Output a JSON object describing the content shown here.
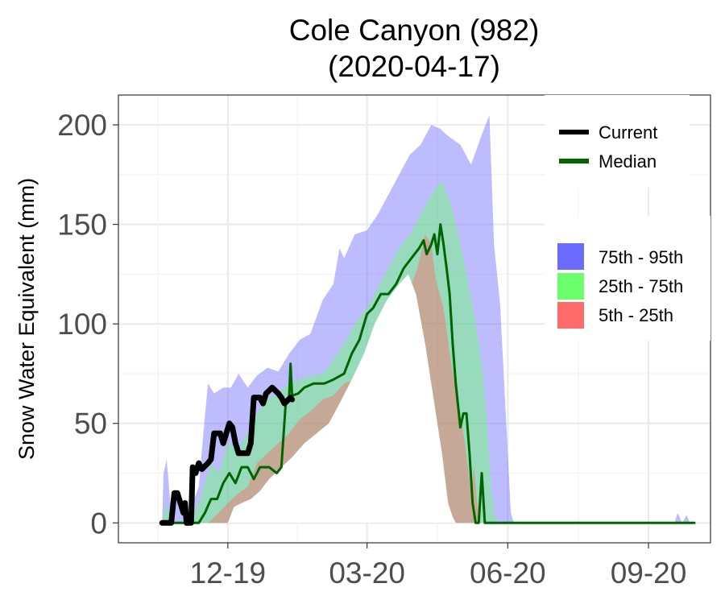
{
  "chart_data": {
    "type": "area",
    "title": [
      "Cole Canyon (982)",
      "(2020-04-17)"
    ],
    "xlabel": "",
    "ylabel": "Snow Water Equivalent (mm)",
    "ylim": [
      -10,
      215
    ],
    "xlim": [
      "2019-10-01",
      "2020-10-01"
    ],
    "x_ticks": [
      {
        "date": "2019-12-01",
        "label": "12-19"
      },
      {
        "date": "2020-03-01",
        "label": "03-20"
      },
      {
        "date": "2020-06-01",
        "label": "06-20"
      },
      {
        "date": "2020-09-01",
        "label": "09-20"
      }
    ],
    "y_ticks": [
      0,
      50,
      100,
      150,
      200
    ],
    "grid": true,
    "legend_placement": "top-right",
    "legend_lines": [
      {
        "name": "Current",
        "color": "#000000"
      },
      {
        "name": "Median",
        "color": "#006400"
      }
    ],
    "legend_bands": [
      {
        "name": "75th - 95th",
        "color": "#6b6bff"
      },
      {
        "name": "25th - 75th",
        "color": "#6bff6b"
      },
      {
        "name": "5th - 25th",
        "color": "#ff6b6b"
      }
    ],
    "bands": {
      "p95": [
        [
          "2019-10-19",
          0
        ],
        [
          "2019-10-20",
          25
        ],
        [
          "2019-10-22",
          32
        ],
        [
          "2019-10-25",
          5
        ],
        [
          "2019-10-28",
          12
        ],
        [
          "2019-11-01",
          10
        ],
        [
          "2019-11-04",
          3
        ],
        [
          "2019-11-08",
          10
        ],
        [
          "2019-11-12",
          18
        ],
        [
          "2019-11-15",
          45
        ],
        [
          "2019-11-18",
          70
        ],
        [
          "2019-11-22",
          65
        ],
        [
          "2019-11-28",
          68
        ],
        [
          "2019-12-03",
          68
        ],
        [
          "2019-12-08",
          75
        ],
        [
          "2019-12-14",
          68
        ],
        [
          "2019-12-20",
          74
        ],
        [
          "2019-12-27",
          78
        ],
        [
          "2020-01-03",
          76
        ],
        [
          "2020-01-10",
          85
        ],
        [
          "2020-01-17",
          92
        ],
        [
          "2020-01-24",
          95
        ],
        [
          "2020-02-01",
          112
        ],
        [
          "2020-02-08",
          120
        ],
        [
          "2020-02-12",
          138
        ],
        [
          "2020-02-15",
          133
        ],
        [
          "2020-02-22",
          145
        ],
        [
          "2020-03-01",
          147
        ],
        [
          "2020-03-08",
          155
        ],
        [
          "2020-03-15",
          165
        ],
        [
          "2020-03-22",
          175
        ],
        [
          "2020-03-29",
          185
        ],
        [
          "2020-04-05",
          190
        ],
        [
          "2020-04-12",
          200
        ],
        [
          "2020-04-18",
          198
        ],
        [
          "2020-04-22",
          195
        ],
        [
          "2020-05-01",
          190
        ],
        [
          "2020-05-08",
          180
        ],
        [
          "2020-05-15",
          195
        ],
        [
          "2020-05-20",
          205
        ],
        [
          "2020-05-23",
          140
        ],
        [
          "2020-05-27",
          110
        ],
        [
          "2020-05-31",
          50
        ],
        [
          "2020-06-03",
          5
        ],
        [
          "2020-06-05",
          0
        ],
        [
          "2020-09-18",
          0
        ],
        [
          "2020-09-20",
          5
        ],
        [
          "2020-09-23",
          0
        ],
        [
          "2020-09-26",
          4
        ],
        [
          "2020-09-28",
          0
        ]
      ],
      "p75": [
        [
          "2019-10-19",
          0
        ],
        [
          "2019-10-22",
          10
        ],
        [
          "2019-10-25",
          0
        ],
        [
          "2019-11-04",
          0
        ],
        [
          "2019-11-08",
          5
        ],
        [
          "2019-11-12",
          10
        ],
        [
          "2019-11-16",
          20
        ],
        [
          "2019-11-20",
          30
        ],
        [
          "2019-11-25",
          25
        ],
        [
          "2019-12-01",
          40
        ],
        [
          "2019-12-08",
          38
        ],
        [
          "2019-12-14",
          45
        ],
        [
          "2019-12-20",
          55
        ],
        [
          "2019-12-27",
          62
        ],
        [
          "2020-01-03",
          66
        ],
        [
          "2020-01-10",
          70
        ],
        [
          "2020-01-17",
          72
        ],
        [
          "2020-01-24",
          74
        ],
        [
          "2020-02-01",
          75
        ],
        [
          "2020-02-08",
          82
        ],
        [
          "2020-02-15",
          90
        ],
        [
          "2020-02-22",
          100
        ],
        [
          "2020-03-01",
          108
        ],
        [
          "2020-03-08",
          118
        ],
        [
          "2020-03-15",
          128
        ],
        [
          "2020-03-22",
          138
        ],
        [
          "2020-03-29",
          145
        ],
        [
          "2020-04-05",
          155
        ],
        [
          "2020-04-12",
          165
        ],
        [
          "2020-04-19",
          172
        ],
        [
          "2020-04-25",
          160
        ],
        [
          "2020-05-01",
          140
        ],
        [
          "2020-05-05",
          125
        ],
        [
          "2020-05-10",
          105
        ],
        [
          "2020-05-15",
          80
        ],
        [
          "2020-05-18",
          55
        ],
        [
          "2020-05-21",
          20
        ],
        [
          "2020-05-23",
          5
        ],
        [
          "2020-05-25",
          0
        ]
      ],
      "p25": [
        [
          "2019-10-19",
          0
        ],
        [
          "2019-11-18",
          0
        ],
        [
          "2019-11-25",
          5
        ],
        [
          "2019-12-01",
          10
        ],
        [
          "2019-12-08",
          15
        ],
        [
          "2019-12-14",
          18
        ],
        [
          "2019-12-20",
          30
        ],
        [
          "2019-12-27",
          35
        ],
        [
          "2020-01-03",
          40
        ],
        [
          "2020-01-10",
          45
        ],
        [
          "2020-01-17",
          52
        ],
        [
          "2020-01-24",
          56
        ],
        [
          "2020-02-01",
          62
        ],
        [
          "2020-02-08",
          64
        ],
        [
          "2020-02-15",
          70
        ],
        [
          "2020-02-22",
          72
        ],
        [
          "2020-03-01",
          76
        ],
        [
          "2020-03-08",
          85
        ],
        [
          "2020-03-15",
          95
        ],
        [
          "2020-03-22",
          112
        ],
        [
          "2020-03-29",
          118
        ],
        [
          "2020-04-03",
          128
        ],
        [
          "2020-04-08",
          145
        ],
        [
          "2020-04-12",
          140
        ],
        [
          "2020-04-15",
          122
        ],
        [
          "2020-04-20",
          108
        ],
        [
          "2020-04-25",
          80
        ],
        [
          "2020-04-30",
          60
        ],
        [
          "2020-05-04",
          40
        ],
        [
          "2020-05-08",
          15
        ],
        [
          "2020-05-10",
          28
        ],
        [
          "2020-05-12",
          10
        ],
        [
          "2020-05-14",
          0
        ]
      ],
      "p05": [
        [
          "2019-10-19",
          0
        ],
        [
          "2019-12-01",
          0
        ],
        [
          "2019-12-05",
          8
        ],
        [
          "2019-12-10",
          10
        ],
        [
          "2019-12-16",
          12
        ],
        [
          "2019-12-22",
          16
        ],
        [
          "2019-12-28",
          22
        ],
        [
          "2020-01-05",
          28
        ],
        [
          "2020-01-12",
          33
        ],
        [
          "2020-01-20",
          40
        ],
        [
          "2020-01-28",
          45
        ],
        [
          "2020-02-05",
          50
        ],
        [
          "2020-02-12",
          60
        ],
        [
          "2020-02-20",
          72
        ],
        [
          "2020-02-28",
          85
        ],
        [
          "2020-03-06",
          100
        ],
        [
          "2020-03-14",
          112
        ],
        [
          "2020-03-22",
          120
        ],
        [
          "2020-03-28",
          125
        ],
        [
          "2020-04-02",
          115
        ],
        [
          "2020-04-08",
          90
        ],
        [
          "2020-04-14",
          60
        ],
        [
          "2020-04-19",
          35
        ],
        [
          "2020-04-23",
          10
        ],
        [
          "2020-04-26",
          3
        ],
        [
          "2020-04-28",
          0
        ]
      ]
    },
    "series": [
      {
        "name": "Median",
        "color": "#006400",
        "points": [
          [
            "2019-10-19",
            0
          ],
          [
            "2019-11-12",
            0
          ],
          [
            "2019-11-16",
            5
          ],
          [
            "2019-11-20",
            12
          ],
          [
            "2019-11-24",
            12
          ],
          [
            "2019-11-28",
            20
          ],
          [
            "2019-12-02",
            25
          ],
          [
            "2019-12-06",
            20
          ],
          [
            "2019-12-10",
            28
          ],
          [
            "2019-12-14",
            28
          ],
          [
            "2019-12-18",
            22
          ],
          [
            "2019-12-22",
            28
          ],
          [
            "2019-12-28",
            28
          ],
          [
            "2020-01-02",
            25
          ],
          [
            "2020-01-05",
            28
          ],
          [
            "2020-01-08",
            62
          ],
          [
            "2020-01-10",
            62
          ],
          [
            "2020-01-11",
            80
          ],
          [
            "2020-01-12",
            64
          ],
          [
            "2020-01-16",
            65
          ],
          [
            "2020-01-20",
            68
          ],
          [
            "2020-01-26",
            70
          ],
          [
            "2020-02-02",
            70
          ],
          [
            "2020-02-08",
            72
          ],
          [
            "2020-02-15",
            75
          ],
          [
            "2020-02-20",
            85
          ],
          [
            "2020-02-25",
            92
          ],
          [
            "2020-03-01",
            105
          ],
          [
            "2020-03-05",
            108
          ],
          [
            "2020-03-10",
            115
          ],
          [
            "2020-03-15",
            115
          ],
          [
            "2020-03-20",
            120
          ],
          [
            "2020-03-25",
            128
          ],
          [
            "2020-03-30",
            133
          ],
          [
            "2020-04-04",
            138
          ],
          [
            "2020-04-07",
            142
          ],
          [
            "2020-04-09",
            135
          ],
          [
            "2020-04-12",
            140
          ],
          [
            "2020-04-14",
            145
          ],
          [
            "2020-04-16",
            135
          ],
          [
            "2020-04-18",
            150
          ],
          [
            "2020-04-20",
            140
          ],
          [
            "2020-04-22",
            128
          ],
          [
            "2020-04-24",
            115
          ],
          [
            "2020-04-26",
            90
          ],
          [
            "2020-04-28",
            70
          ],
          [
            "2020-05-01",
            48
          ],
          [
            "2020-05-03",
            55
          ],
          [
            "2020-05-05",
            55
          ],
          [
            "2020-05-07",
            35
          ],
          [
            "2020-05-09",
            10
          ],
          [
            "2020-05-11",
            0
          ],
          [
            "2020-05-13",
            0
          ],
          [
            "2020-05-15",
            25
          ],
          [
            "2020-05-17",
            0
          ],
          [
            "2020-10-01",
            0
          ]
        ]
      },
      {
        "name": "Current",
        "color": "#000000",
        "points": [
          [
            "2019-10-19",
            0
          ],
          [
            "2019-10-25",
            0
          ],
          [
            "2019-10-27",
            15
          ],
          [
            "2019-10-29",
            15
          ],
          [
            "2019-10-31",
            10
          ],
          [
            "2019-11-02",
            5
          ],
          [
            "2019-11-03",
            10
          ],
          [
            "2019-11-04",
            0
          ],
          [
            "2019-11-07",
            0
          ],
          [
            "2019-11-08",
            28
          ],
          [
            "2019-11-10",
            25
          ],
          [
            "2019-11-12",
            30
          ],
          [
            "2019-11-14",
            27
          ],
          [
            "2019-11-18",
            30
          ],
          [
            "2019-11-20",
            32
          ],
          [
            "2019-11-22",
            45
          ],
          [
            "2019-11-26",
            45
          ],
          [
            "2019-11-28",
            40
          ],
          [
            "2019-11-30",
            45
          ],
          [
            "2019-12-02",
            50
          ],
          [
            "2019-12-04",
            48
          ],
          [
            "2019-12-06",
            40
          ],
          [
            "2019-12-08",
            35
          ],
          [
            "2019-12-10",
            35
          ],
          [
            "2019-12-14",
            35
          ],
          [
            "2019-12-16",
            40
          ],
          [
            "2019-12-18",
            63
          ],
          [
            "2019-12-22",
            63
          ],
          [
            "2019-12-24",
            60
          ],
          [
            "2019-12-26",
            65
          ],
          [
            "2019-12-30",
            68
          ],
          [
            "2020-01-03",
            65
          ],
          [
            "2020-01-05",
            63
          ],
          [
            "2020-01-07",
            60
          ],
          [
            "2020-01-11",
            63
          ],
          [
            "2020-01-12",
            62
          ]
        ]
      }
    ]
  }
}
